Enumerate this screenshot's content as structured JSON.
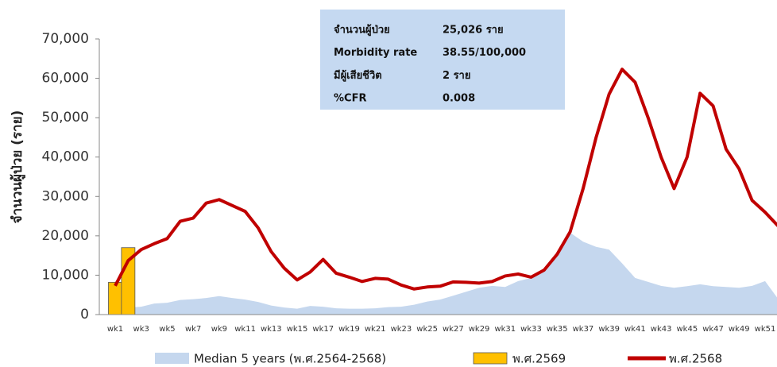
{
  "chart_data": {
    "type": "combo",
    "y_label": "จำนวนผู้ป่วย (ราย)",
    "categories": [
      "wk1",
      null,
      "wk3",
      null,
      "wk5",
      null,
      "wk7",
      null,
      "wk9",
      null,
      "wk11",
      null,
      "wk13",
      null,
      "wk15",
      null,
      "wk17",
      null,
      "wk19",
      null,
      "wk21",
      null,
      "wk23",
      null,
      "wk25",
      null,
      "wk27",
      null,
      "wk29",
      null,
      "wk31",
      null,
      "wk33",
      null,
      "wk35",
      null,
      "wk37",
      null,
      "wk39",
      null,
      "wk41",
      null,
      "wk43",
      null,
      "wk45",
      null,
      "wk47",
      null,
      "wk49",
      null,
      "wk51",
      null
    ],
    "ylim": [
      0,
      70000
    ],
    "yticks": [
      {
        "value": 0,
        "label": "0"
      },
      {
        "value": 10000,
        "label": "10,000"
      },
      {
        "value": 20000,
        "label": "20,000"
      },
      {
        "value": 30000,
        "label": "30,000"
      },
      {
        "value": 40000,
        "label": "40,000"
      },
      {
        "value": 50000,
        "label": "50,000"
      },
      {
        "value": 60000,
        "label": "60,000"
      },
      {
        "value": 70000,
        "label": "70,000"
      }
    ],
    "series": [
      {
        "name": "Median 5 years (พ.ศ.2564-2568)",
        "type": "area",
        "color": "#c5d7ee",
        "values": [
          1500,
          1800,
          2000,
          2800,
          3000,
          3700,
          3900,
          4200,
          4700,
          4200,
          3800,
          3200,
          2300,
          1800,
          1500,
          2200,
          2000,
          1600,
          1500,
          1500,
          1600,
          1900,
          2000,
          2500,
          3300,
          3800,
          4800,
          5800,
          6800,
          7300,
          7000,
          8500,
          9300,
          11500,
          15500,
          20800,
          18500,
          17200,
          16500,
          13000,
          9300,
          8300,
          7300,
          6800,
          7200,
          7700,
          7200,
          7000,
          6800,
          7300,
          8500,
          4000
        ]
      },
      {
        "name": "พ.ศ.2569",
        "type": "bar",
        "color": "#ffc000",
        "values": [
          8200,
          17000,
          null,
          null,
          null,
          null,
          null,
          null,
          null,
          null,
          null,
          null,
          null,
          null,
          null,
          null,
          null,
          null,
          null,
          null,
          null,
          null,
          null,
          null,
          null,
          null,
          null,
          null,
          null,
          null,
          null,
          null,
          null,
          null,
          null,
          null,
          null,
          null,
          null,
          null,
          null,
          null,
          null,
          null,
          null,
          null,
          null,
          null,
          null,
          null,
          null,
          null
        ]
      },
      {
        "name": "พ.ศ.2568",
        "type": "line",
        "color": "#c00000",
        "values": [
          7300,
          13700,
          16500,
          18000,
          19300,
          23700,
          24500,
          28300,
          29200,
          27700,
          26200,
          22000,
          16000,
          11800,
          8800,
          10800,
          14000,
          10500,
          9500,
          8400,
          9200,
          9000,
          7500,
          6500,
          7000,
          7200,
          8300,
          8200,
          8000,
          8400,
          9800,
          10300,
          9500,
          11300,
          15300,
          21000,
          32000,
          45000,
          56000,
          62300,
          59000,
          50000,
          40000,
          32000,
          40000,
          56200,
          53000,
          42000,
          37000,
          29000,
          26000,
          22500
        ]
      }
    ],
    "info_box": [
      [
        "จำนวนผู้ป่วย",
        "25,026 ราย"
      ],
      [
        "Morbidity rate",
        "38.55/100,000"
      ],
      [
        "มีผู้เสียชีวิต",
        "2 ราย"
      ],
      [
        "%CFR",
        "0.008"
      ]
    ]
  }
}
